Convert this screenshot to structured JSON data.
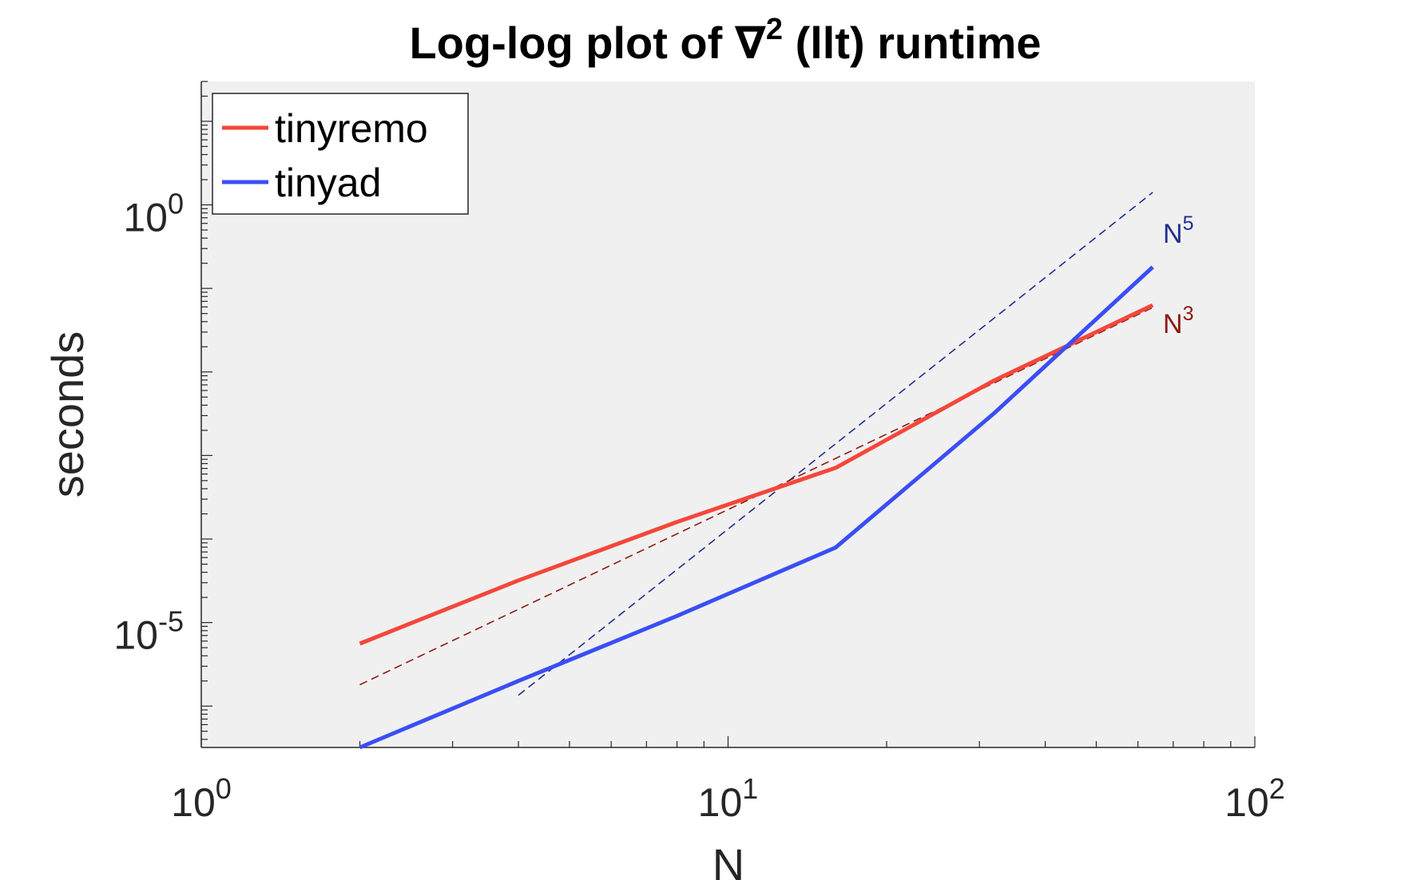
{
  "chart_data": {
    "type": "line",
    "title": {
      "prefix": "Log-log plot of ∇",
      "superscript": "2",
      "suffix": " (llt) runtime"
    },
    "xlabel": "N",
    "ylabel": "seconds",
    "xscale": "log",
    "yscale": "log",
    "xlim": [
      1,
      100
    ],
    "ylim": [
      3.2e-07,
      30
    ],
    "x_ticks": [
      {
        "value": 1,
        "base": "10",
        "exp": "0"
      },
      {
        "value": 10,
        "base": "10",
        "exp": "1"
      },
      {
        "value": 100,
        "base": "10",
        "exp": "2"
      }
    ],
    "y_ticks": [
      {
        "value": 1e-05,
        "base": "10",
        "exp": "-5"
      },
      {
        "value": 1,
        "base": "10",
        "exp": "0"
      }
    ],
    "legend_position": "top-left",
    "series": [
      {
        "name": "tinyremo",
        "color": "#f4473a",
        "x": [
          2,
          4,
          8,
          16,
          32,
          64
        ],
        "y": [
          5.6e-06,
          3.2e-05,
          0.00016,
          0.00071,
          0.0079,
          0.063
        ]
      },
      {
        "name": "tinyad",
        "color": "#3a4ef5",
        "x": [
          2,
          4,
          8,
          16,
          32,
          64
        ],
        "y": [
          3.2e-07,
          2e-06,
          1.2e-05,
          7.9e-05,
          0.0032,
          0.18
        ]
      }
    ],
    "reference_lines": [
      {
        "label_base": "N",
        "label_exp": "5",
        "color": "#1f2f8f",
        "x": [
          4,
          64
        ],
        "y": [
          1.35e-06,
          1.41
        ]
      },
      {
        "label_base": "N",
        "label_exp": "3",
        "color": "#8b1a12",
        "x": [
          2,
          64
        ],
        "y": [
          1.8e-06,
          0.059
        ]
      }
    ]
  }
}
